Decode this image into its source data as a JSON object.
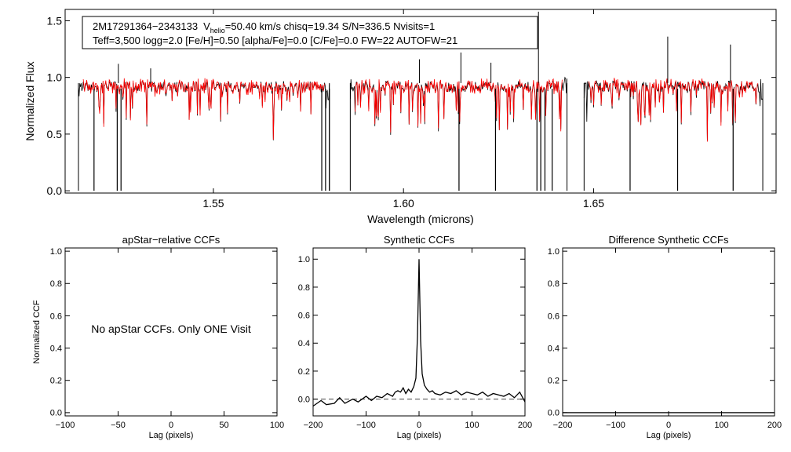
{
  "spectrum_panel": {
    "info_line1_name": "2M17291364−2343133",
    "info_line1_v": "V",
    "info_line1_helio": "helio",
    "info_line1_rest": "=50.40 km/s  chisq=19.34  S/N=336.5  Nvisits=1",
    "info_line2": "Teff=3,500 logg=2.0 [Fe/H]=0.50 [alpha/Fe]=0.0 [C/Fe]=0.0 FW=22 AUTOFW=21"
  },
  "ccf_panels": {
    "apstar_note": "No apStar CCFs.  Only ONE Visit"
  },
  "colors": {
    "observed": "#000000",
    "model": "#ff0000",
    "axes": "#000000",
    "dashed_zero": "#444444"
  },
  "chart_data": [
    {
      "type": "line",
      "xlabel": "Wavelength (microns)",
      "ylabel": "Normalized Flux",
      "xlim": [
        1.511,
        1.698
      ],
      "ylim": [
        -0.02,
        1.6
      ],
      "xticks": [
        1.55,
        1.6,
        1.65
      ],
      "xtick_labels": [
        "1.55",
        "1.60",
        "1.65"
      ],
      "yticks": [
        0.0,
        0.5,
        1.0,
        1.5
      ],
      "ytick_labels": [
        "0.0",
        "0.5",
        "1.0",
        "1.5"
      ],
      "chips": [
        [
          1.5145,
          1.5805
        ],
        [
          1.586,
          1.643
        ],
        [
          1.6475,
          1.6945
        ]
      ],
      "series": [
        {
          "key": "observed",
          "spikes_down": [
            1.5186,
            1.5247,
            1.5257,
            1.5785,
            1.5795,
            1.5805,
            1.6146,
            1.6242,
            1.6351,
            1.6361,
            1.6372,
            1.6391,
            1.6596,
            1.6721,
            1.6867
          ],
          "spikes_up": [
            [
              1.525,
              1.12
            ],
            [
              1.5335,
              1.08
            ],
            [
              1.6042,
              1.16
            ],
            [
              1.6151,
              1.22
            ],
            [
              1.623,
              1.13
            ],
            [
              1.6355,
              1.58
            ],
            [
              1.6695,
              1.36
            ],
            [
              1.686,
              1.29
            ]
          ]
        },
        {
          "key": "model"
        }
      ]
    },
    {
      "type": "line",
      "title": "apStar−relative CCFs",
      "xlabel": "Lag (pixels)",
      "ylabel": "Normalized CCF",
      "xlim": [
        -100,
        100
      ],
      "ylim": [
        -0.02,
        1.02
      ],
      "xticks": [
        -100,
        -50,
        0,
        50,
        100
      ],
      "xtick_labels": [
        "−100",
        "−50",
        "0",
        "50",
        "100"
      ],
      "yticks": [
        0.0,
        0.2,
        0.4,
        0.6,
        0.8,
        1.0
      ],
      "ytick_labels": [
        "0.0",
        "0.2",
        "0.4",
        "0.6",
        "0.8",
        "1.0"
      ],
      "series": []
    },
    {
      "type": "line",
      "title": "Synthetic CCFs",
      "xlabel": "Lag (pixels)",
      "xlim": [
        -200,
        200
      ],
      "ylim": [
        -0.12,
        1.08
      ],
      "xticks": [
        -200,
        -100,
        0,
        100,
        200
      ],
      "xtick_labels": [
        "−200",
        "−100",
        "0",
        "100",
        "200"
      ],
      "yticks": [
        0.0,
        0.2,
        0.4,
        0.6,
        0.8,
        1.0
      ],
      "ytick_labels": [
        "0.0",
        "0.2",
        "0.4",
        "0.6",
        "0.8",
        "1.0"
      ],
      "dashed_zero_line": true,
      "series": [
        {
          "key": "ccf",
          "x": [
            -200,
            -185,
            -175,
            -160,
            -150,
            -140,
            -125,
            -115,
            -100,
            -90,
            -80,
            -70,
            -60,
            -50,
            -45,
            -40,
            -35,
            -30,
            -25,
            -20,
            -15,
            -10,
            -6,
            -3,
            0,
            3,
            6,
            10,
            15,
            20,
            25,
            30,
            40,
            50,
            60,
            70,
            80,
            90,
            100,
            110,
            120,
            130,
            140,
            150,
            160,
            170,
            180,
            190,
            200
          ],
          "y": [
            -0.05,
            -0.01,
            -0.04,
            -0.03,
            0.01,
            -0.03,
            0.0,
            -0.02,
            0.02,
            -0.01,
            0.02,
            0.01,
            0.04,
            0.02,
            0.05,
            0.06,
            0.05,
            0.08,
            0.04,
            0.07,
            0.05,
            0.09,
            0.15,
            0.45,
            1.0,
            0.42,
            0.18,
            0.1,
            0.07,
            0.05,
            0.06,
            0.04,
            0.03,
            0.05,
            0.04,
            0.06,
            0.03,
            0.05,
            0.04,
            0.03,
            0.05,
            0.02,
            0.04,
            0.03,
            0.02,
            0.04,
            0.01,
            0.05,
            -0.02
          ]
        }
      ]
    },
    {
      "type": "line",
      "title": "Difference Synthetic CCFs",
      "xlabel": "Lag (pixels)",
      "xlim": [
        -200,
        200
      ],
      "ylim": [
        -0.02,
        1.02
      ],
      "xticks": [
        -200,
        -100,
        0,
        100,
        200
      ],
      "xtick_labels": [
        "−200",
        "−100",
        "0",
        "100",
        "200"
      ],
      "yticks": [
        0.0,
        0.2,
        0.4,
        0.6,
        0.8,
        1.0
      ],
      "ytick_labels": [
        "0.0",
        "0.2",
        "0.4",
        "0.6",
        "0.8",
        "1.0"
      ],
      "series": [
        {
          "key": "flat",
          "x": [
            -200,
            200
          ],
          "y": [
            0.0,
            0.0
          ]
        }
      ]
    }
  ]
}
